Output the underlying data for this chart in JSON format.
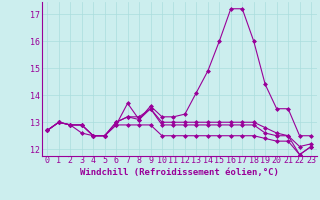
{
  "x": [
    0,
    1,
    2,
    3,
    4,
    5,
    6,
    7,
    8,
    9,
    10,
    11,
    12,
    13,
    14,
    15,
    16,
    17,
    18,
    19,
    20,
    21,
    22,
    23
  ],
  "line1": [
    12.7,
    13.0,
    12.9,
    12.6,
    12.5,
    12.5,
    12.9,
    13.7,
    13.1,
    13.6,
    13.2,
    13.2,
    13.3,
    14.1,
    14.9,
    16.0,
    17.2,
    17.2,
    16.0,
    14.4,
    13.5,
    13.5,
    12.5,
    12.5
  ],
  "line2": [
    12.7,
    13.0,
    12.9,
    12.9,
    12.5,
    12.5,
    13.0,
    13.2,
    13.2,
    13.5,
    13.0,
    13.0,
    13.0,
    13.0,
    13.0,
    13.0,
    13.0,
    13.0,
    13.0,
    12.8,
    12.6,
    12.5,
    12.1,
    12.2
  ],
  "line3": [
    12.7,
    13.0,
    12.9,
    12.9,
    12.5,
    12.5,
    13.0,
    13.2,
    13.1,
    13.5,
    12.9,
    12.9,
    12.9,
    12.9,
    12.9,
    12.9,
    12.9,
    12.9,
    12.9,
    12.6,
    12.5,
    12.5,
    11.8,
    12.1
  ],
  "line4": [
    12.7,
    13.0,
    12.9,
    12.9,
    12.5,
    12.5,
    12.9,
    12.9,
    12.9,
    12.9,
    12.5,
    12.5,
    12.5,
    12.5,
    12.5,
    12.5,
    12.5,
    12.5,
    12.5,
    12.4,
    12.3,
    12.3,
    11.8,
    12.1
  ],
  "line_color": "#990099",
  "bg_color": "#cceeee",
  "grid_color": "#aadddd",
  "ylim": [
    11.75,
    17.45
  ],
  "yticks": [
    12,
    13,
    14,
    15,
    16,
    17
  ],
  "xticks": [
    0,
    1,
    2,
    3,
    4,
    5,
    6,
    7,
    8,
    9,
    10,
    11,
    12,
    13,
    14,
    15,
    16,
    17,
    18,
    19,
    20,
    21,
    22,
    23
  ],
  "xlabel": "Windchill (Refroidissement éolien,°C)",
  "xlabel_fontsize": 6.5,
  "tick_fontsize": 6.0,
  "marker": "D",
  "markersize": 2.0,
  "linewidth": 0.8
}
